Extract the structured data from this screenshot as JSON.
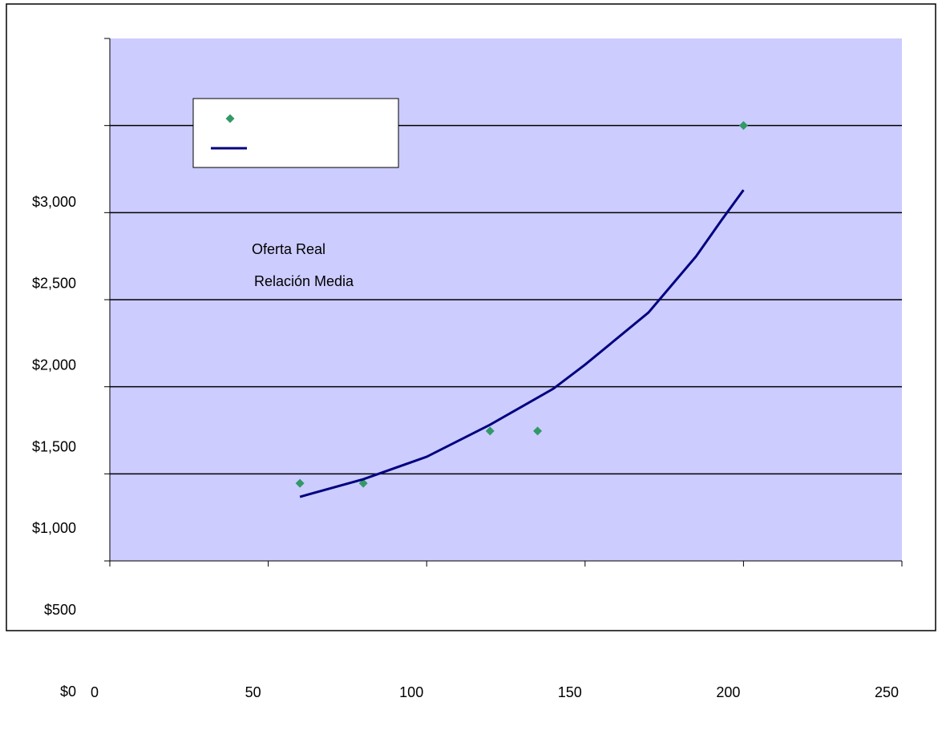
{
  "chart_data": {
    "type": "scatter",
    "xlim": [
      0,
      250
    ],
    "xticks": [
      0,
      50,
      100,
      150,
      200,
      250
    ],
    "ylim": [
      0,
      3000
    ],
    "yticks": [
      {
        "value": 0,
        "label": "$0"
      },
      {
        "value": 500,
        "label": "$500"
      },
      {
        "value": 1000,
        "label": "$1,000"
      },
      {
        "value": 1500,
        "label": "$1,500"
      },
      {
        "value": 2000,
        "label": "$2,000"
      },
      {
        "value": 2500,
        "label": "$2,500"
      },
      {
        "value": 3000,
        "label": "$3,000"
      }
    ],
    "grid": true,
    "background": "#ccccff",
    "series": [
      {
        "name": "Oferta Real",
        "color": "#339966",
        "kind": "scatter",
        "x": [
          60,
          80,
          120,
          135,
          200
        ],
        "values": [
          446,
          446,
          746,
          746,
          2500
        ]
      },
      {
        "name": "Relación Media",
        "color": "#000080",
        "kind": "line",
        "x": [
          60,
          80,
          100,
          120,
          140,
          150,
          170,
          185,
          193,
          200
        ],
        "values": [
          368,
          469,
          598,
          782,
          989,
          1127,
          1426,
          1748,
          1955,
          2130
        ]
      }
    ]
  }
}
